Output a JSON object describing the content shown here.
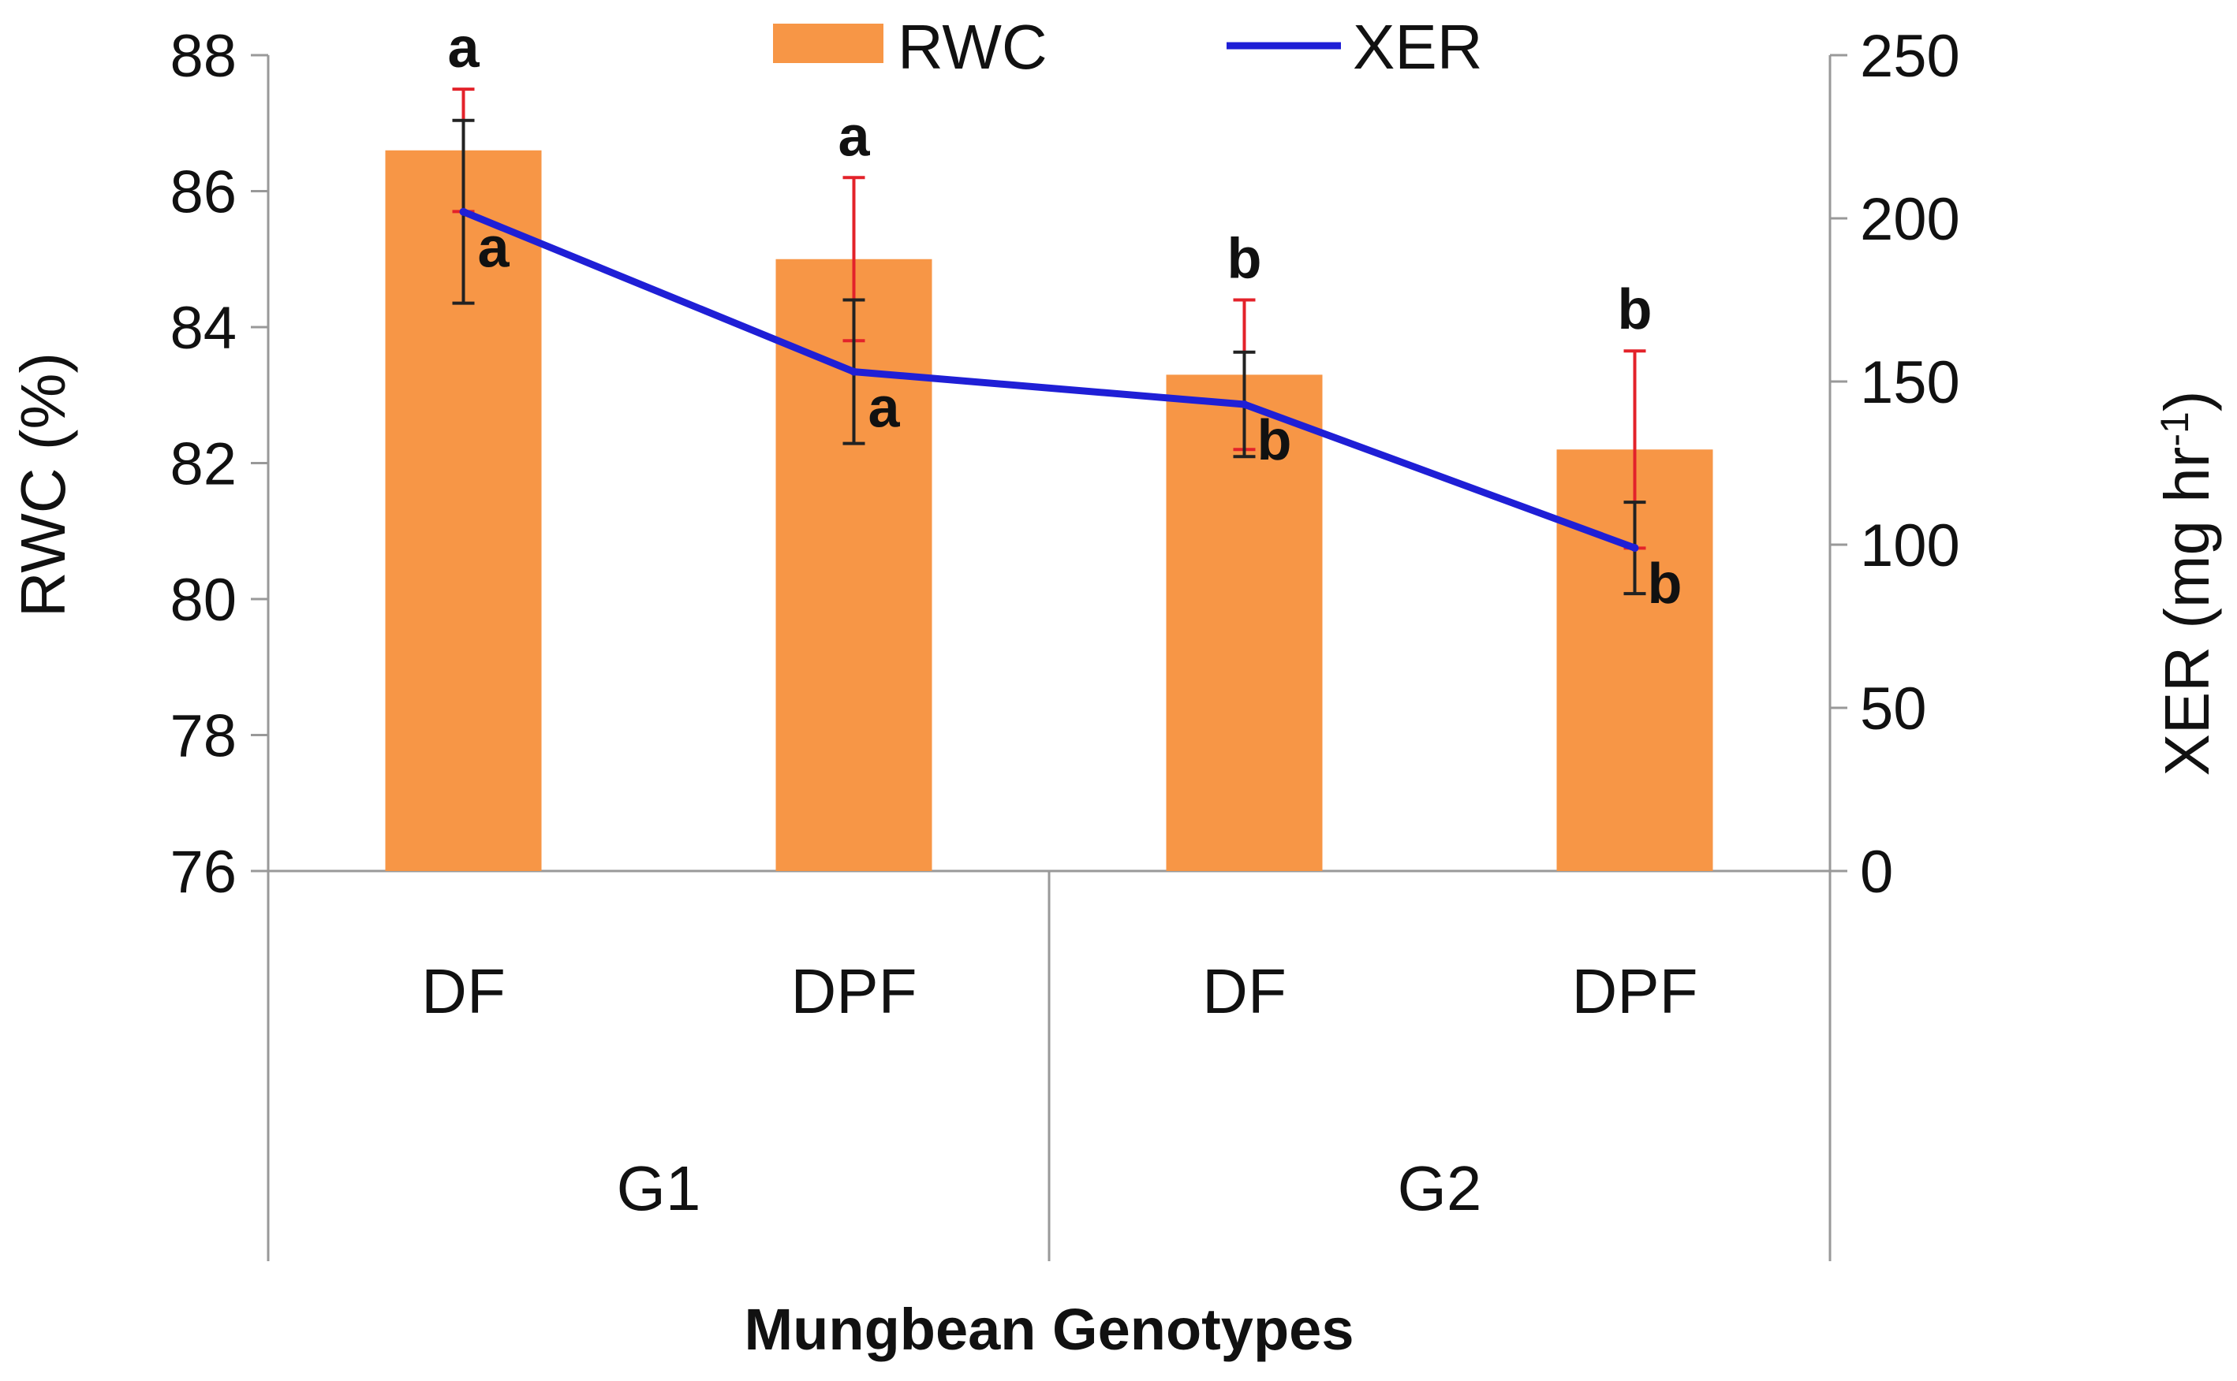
{
  "chart_data": {
    "type": "bar+line",
    "title": "",
    "xlabel": "Mungbean Genotypes",
    "categories": [
      "DF",
      "DPF",
      "DF",
      "DPF"
    ],
    "groups": [
      {
        "label": "G1",
        "span": [
          0,
          1
        ]
      },
      {
        "label": "G2",
        "span": [
          2,
          3
        ]
      }
    ],
    "left_axis": {
      "label": "RWC (%)",
      "ylim": [
        76,
        88
      ],
      "ticks": [
        76,
        78,
        80,
        82,
        84,
        86,
        88
      ]
    },
    "right_axis": {
      "label": "XER (mg hr",
      "label_sup": "-1",
      "label_close": ")",
      "ylim": [
        0,
        250
      ],
      "ticks": [
        0,
        50,
        100,
        150,
        200,
        250
      ]
    },
    "series": [
      {
        "name": "RWC",
        "kind": "bar",
        "axis": "left",
        "color": "#F79646",
        "values": [
          86.6,
          85.0,
          83.3,
          82.2
        ],
        "error": [
          0.9,
          1.2,
          1.1,
          1.45
        ],
        "error_color": "#E3222A",
        "significance": [
          "a",
          "a",
          "b",
          "b"
        ]
      },
      {
        "name": "XER",
        "kind": "line",
        "axis": "left_scaled_right",
        "color": "#1F1FD6",
        "values": [
          202,
          153,
          143,
          99
        ],
        "error": [
          28,
          22,
          16,
          14
        ],
        "error_color": "#222222",
        "significance": [
          "a",
          "a",
          "b",
          "b"
        ]
      }
    ],
    "legend": {
      "position": "top-center",
      "items": [
        "RWC",
        "XER"
      ]
    }
  }
}
